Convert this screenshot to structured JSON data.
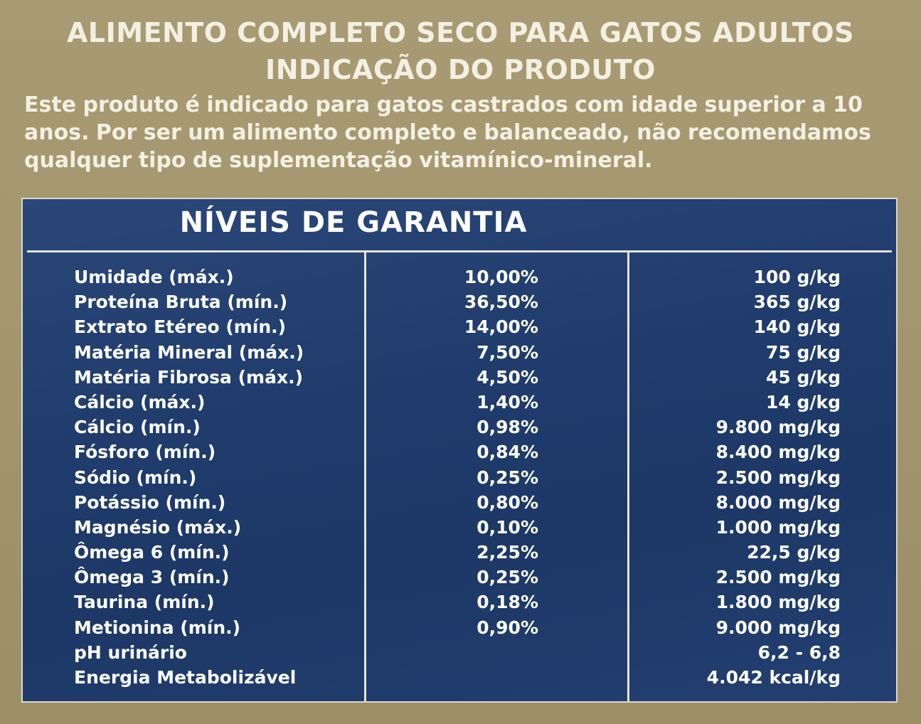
{
  "heading_line1": "ALIMENTO COMPLETO SECO PARA GATOS ADULTOS",
  "heading_line2": "INDICAÇÃO DO PRODUTO",
  "description": "Este produto é indicado para gatos castrados com idade superior a 10 anos. Por ser um alimento completo e balanceado, não recomendamos qualquer tipo de suplementação vitamínico-mineral.",
  "table": {
    "title": "NÍVEIS DE GARANTIA",
    "rows": [
      {
        "name": "Umidade (máx.)",
        "percent": "10,00%",
        "amount": "100 g/kg"
      },
      {
        "name": "Proteína Bruta (mín.)",
        "percent": "36,50%",
        "amount": "365 g/kg"
      },
      {
        "name": "Extrato Etéreo (mín.)",
        "percent": "14,00%",
        "amount": "140 g/kg"
      },
      {
        "name": "Matéria Mineral (máx.)",
        "percent": "7,50%",
        "amount": "75 g/kg"
      },
      {
        "name": "Matéria Fibrosa (máx.)",
        "percent": "4,50%",
        "amount": "45 g/kg"
      },
      {
        "name": "Cálcio (máx.)",
        "percent": "1,40%",
        "amount": "14 g/kg"
      },
      {
        "name": "Cálcio (mín.)",
        "percent": "0,98%",
        "amount": "9.800 mg/kg"
      },
      {
        "name": "Fósforo (mín.)",
        "percent": "0,84%",
        "amount": "8.400 mg/kg"
      },
      {
        "name": "Sódio (mín.)",
        "percent": "0,25%",
        "amount": "2.500 mg/kg"
      },
      {
        "name": "Potássio (mín.)",
        "percent": "0,80%",
        "amount": "8.000 mg/kg"
      },
      {
        "name": "Magnésio (máx.)",
        "percent": "0,10%",
        "amount": "1.000 mg/kg"
      },
      {
        "name": "Ômega 6 (mín.)",
        "percent": "2,25%",
        "amount": "22,5 g/kg"
      },
      {
        "name": "Ômega 3 (mín.)",
        "percent": "0,25%",
        "amount": "2.500 mg/kg"
      },
      {
        "name": "Taurina (mín.)",
        "percent": "0,18%",
        "amount": "1.800 mg/kg"
      },
      {
        "name": "Metionina (mín.)",
        "percent": "0,90%",
        "amount": "9.000 mg/kg"
      },
      {
        "name": "pH urinário",
        "percent": "",
        "amount": "6,2 - 6,8"
      },
      {
        "name": "Energia Metabolizável",
        "percent": "",
        "amount": "4.042 kcal/kg"
      }
    ]
  }
}
